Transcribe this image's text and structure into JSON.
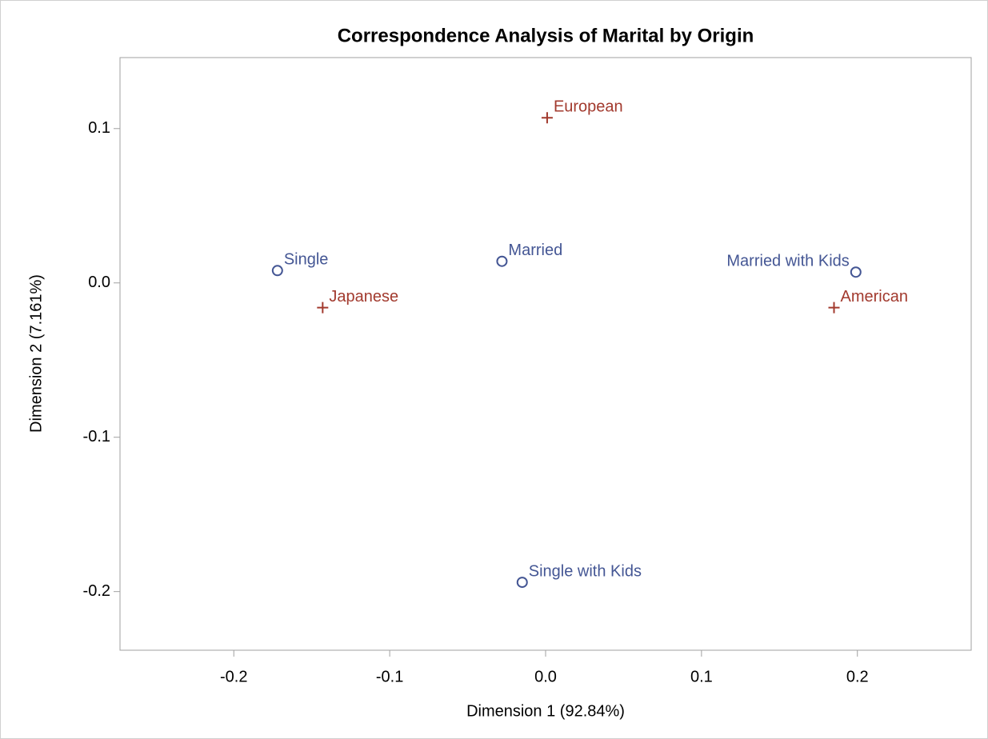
{
  "chart_data": {
    "type": "scatter",
    "title": "Correspondence Analysis of Marital by Origin",
    "x_label": "Dimension 1 (92.84%)",
    "y_label": "Dimension 2 (7.161%)",
    "xlim": [
      -0.273,
      0.273
    ],
    "ylim": [
      -0.238,
      0.146
    ],
    "xticks": [
      -0.2,
      -0.1,
      {
        "value": 0,
        "label": "0.0"
      },
      0.1,
      0.2
    ],
    "yticks": [
      -0.2,
      -0.1,
      {
        "value": 0,
        "label": "0.0"
      },
      0.1
    ],
    "grid": false,
    "series": [
      {
        "color": "#445694",
        "marker": "circle",
        "labels": [
          "Single",
          "Married",
          "Married with Kids",
          "Single with Kids"
        ],
        "x": [
          -0.172,
          -0.028,
          0.199,
          -0.015
        ],
        "values": [
          0.008,
          0.014,
          0.007,
          -0.194
        ]
      },
      {
        "color": "#a23a2e",
        "marker": "plus",
        "labels": [
          "European",
          "Japanese",
          "American"
        ],
        "x": [
          0.001,
          -0.143,
          0.185
        ],
        "values": [
          0.107,
          -0.016,
          -0.016
        ]
      }
    ]
  }
}
